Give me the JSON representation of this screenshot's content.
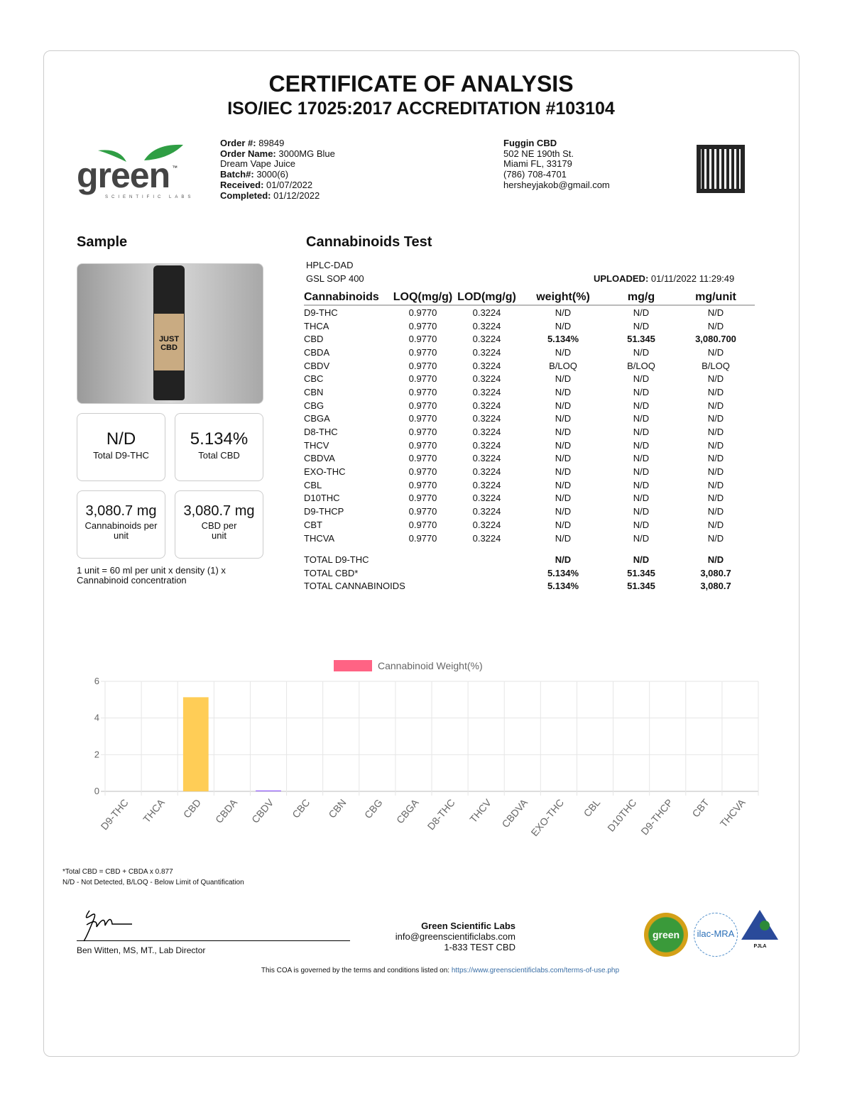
{
  "header": {
    "title": "CERTIFICATE OF ANALYSIS",
    "subtitle": "ISO/IEC 17025:2017 ACCREDITATION #103104"
  },
  "logo": {
    "text": "green",
    "tagline": "SCIENTIFIC LABS",
    "tm": "™"
  },
  "order": {
    "order_no_label": "Order #:",
    "order_no": "89849",
    "order_name_label": "Order Name:",
    "order_name_1": "3000MG Blue",
    "order_name_2": "Dream Vape Juice",
    "batch_label": "Batch#:",
    "batch": "3000(6)",
    "received_label": "Received:",
    "received": "01/07/2022",
    "completed_label": "Completed:",
    "completed": "01/12/2022"
  },
  "client": {
    "name": "Fuggin CBD",
    "address1": "502 NE 190th St.",
    "address2": "Miami FL, 33179",
    "phone": "(786) 708-4701",
    "email": "hersheyjakob@gmail.com"
  },
  "sample": {
    "title": "Sample",
    "product_brand": "JUST CBD",
    "summary": [
      {
        "value": "N/D",
        "label": "Total D9-THC"
      },
      {
        "value": "5.134%",
        "label": "Total CBD"
      },
      {
        "value": "3,080.7 mg",
        "label": "Cannabinoids per unit"
      },
      {
        "value": "3,080.7 mg",
        "label": "CBD per unit"
      }
    ],
    "note": "1 unit = 60 ml per unit x density (1) x Cannabinoid concentration"
  },
  "test": {
    "title": "Cannabinoids Test",
    "method": "HPLC-DAD",
    "sop": "GSL SOP 400",
    "uploaded_label": "UPLOADED:",
    "uploaded": "01/11/2022 11:29:49",
    "columns": [
      "Cannabinoids",
      "LOQ(mg/g)",
      "LOD(mg/g)",
      "weight(%)",
      "mg/g",
      "mg/unit"
    ],
    "rows": [
      [
        "D9-THC",
        "0.9770",
        "0.3224",
        "N/D",
        "N/D",
        "N/D"
      ],
      [
        "THCA",
        "0.9770",
        "0.3224",
        "N/D",
        "N/D",
        "N/D"
      ],
      [
        "CBD",
        "0.9770",
        "0.3224",
        "5.134%",
        "51.345",
        "3,080.700"
      ],
      [
        "CBDA",
        "0.9770",
        "0.3224",
        "N/D",
        "N/D",
        "N/D"
      ],
      [
        "CBDV",
        "0.9770",
        "0.3224",
        "B/LOQ",
        "B/LOQ",
        "B/LOQ"
      ],
      [
        "CBC",
        "0.9770",
        "0.3224",
        "N/D",
        "N/D",
        "N/D"
      ],
      [
        "CBN",
        "0.9770",
        "0.3224",
        "N/D",
        "N/D",
        "N/D"
      ],
      [
        "CBG",
        "0.9770",
        "0.3224",
        "N/D",
        "N/D",
        "N/D"
      ],
      [
        "CBGA",
        "0.9770",
        "0.3224",
        "N/D",
        "N/D",
        "N/D"
      ],
      [
        "D8-THC",
        "0.9770",
        "0.3224",
        "N/D",
        "N/D",
        "N/D"
      ],
      [
        "THCV",
        "0.9770",
        "0.3224",
        "N/D",
        "N/D",
        "N/D"
      ],
      [
        "CBDVA",
        "0.9770",
        "0.3224",
        "N/D",
        "N/D",
        "N/D"
      ],
      [
        "EXO-THC",
        "0.9770",
        "0.3224",
        "N/D",
        "N/D",
        "N/D"
      ],
      [
        "CBL",
        "0.9770",
        "0.3224",
        "N/D",
        "N/D",
        "N/D"
      ],
      [
        "D10THC",
        "0.9770",
        "0.3224",
        "N/D",
        "N/D",
        "N/D"
      ],
      [
        "D9-THCP",
        "0.9770",
        "0.3224",
        "N/D",
        "N/D",
        "N/D"
      ],
      [
        "CBT",
        "0.9770",
        "0.3224",
        "N/D",
        "N/D",
        "N/D"
      ],
      [
        "THCVA",
        "0.9770",
        "0.3224",
        "N/D",
        "N/D",
        "N/D"
      ]
    ],
    "totals": [
      [
        "TOTAL D9-THC",
        "N/D",
        "N/D",
        "N/D"
      ],
      [
        "TOTAL CBD*",
        "5.134%",
        "51.345",
        "3,080.7"
      ],
      [
        "TOTAL CANNABINOIDS",
        "5.134%",
        "51.345",
        "3,080.7"
      ]
    ]
  },
  "chart_data": {
    "type": "bar",
    "categories": [
      "D9-THC",
      "THCA",
      "CBD",
      "CBDA",
      "CBDV",
      "CBC",
      "CBN",
      "CBG",
      "CBGA",
      "D8-THC",
      "THCV",
      "CBDVA",
      "EXO-THC",
      "CBL",
      "D10THC",
      "D9-THCP",
      "CBT",
      "THCVA"
    ],
    "series": [
      {
        "name": "Cannabinoid Weight(%)",
        "values": [
          0,
          0,
          5.134,
          0,
          0.05,
          0,
          0,
          0,
          0,
          0,
          0,
          0,
          0,
          0,
          0,
          0,
          0,
          0
        ]
      }
    ],
    "yticks": [
      "0",
      "2",
      "4",
      "6"
    ],
    "ylim": [
      0,
      6
    ],
    "grid": true,
    "legend": "top",
    "legend_color": "#ff6384",
    "bar_colors": {
      "CBD": "#ffcd56",
      "CBDV": "#9966ff"
    }
  },
  "footnotes": {
    "line1": "*Total CBD = CBD + CBDA x 0.877",
    "line2": "N/D - Not Detected, B/LOQ - Below Limit of Quantification"
  },
  "signature": {
    "name": "Ben Witten, MS, MT., Lab Director"
  },
  "lab": {
    "name": "Green Scientific Labs",
    "email": "info@greenscientificlabs.com",
    "phone": "1-833 TEST CBD"
  },
  "badges": {
    "green": "green",
    "ilac": "ilac-MRA",
    "pjla": "PJLA"
  },
  "terms": {
    "text": "This COA is governed by the terms and conditions listed on:",
    "link": "https://www.greenscientificlabs.com/terms-of-use.php"
  }
}
